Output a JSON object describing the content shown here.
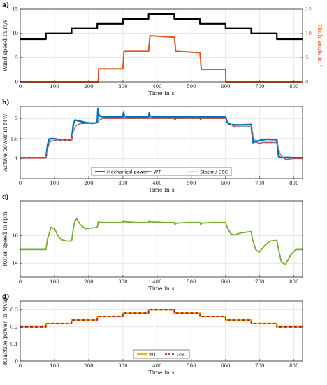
{
  "chart_data": [
    {
      "panel_label": "a)",
      "type": "line",
      "xlabel": "Time in s",
      "ylabel": "Wind speed in m/s",
      "ylabel_right": "Pitch angle in °",
      "xlim": [
        0,
        825
      ],
      "ylim": [
        0,
        15
      ],
      "ylim_right": [
        0,
        15
      ],
      "xticks": [
        0,
        100,
        200,
        300,
        400,
        500,
        600,
        700,
        800
      ],
      "yticks": [
        0,
        5,
        10,
        15
      ],
      "yticks_right": [
        0,
        5,
        10,
        15
      ],
      "grid": true,
      "series": [
        {
          "name": "",
          "axis": "left",
          "color": "#000000",
          "dash": "",
          "width": 2.2,
          "x": [
            0,
            75,
            75,
            150,
            150,
            225,
            225,
            300,
            300,
            375,
            375,
            450,
            450,
            525,
            525,
            600,
            600,
            675,
            675,
            750,
            750,
            825
          ],
          "y": [
            8.8,
            8.8,
            10,
            10,
            11,
            11,
            12,
            12,
            13,
            13,
            14,
            14,
            13,
            13,
            12,
            12,
            11,
            11,
            10,
            10,
            8.8,
            8.8
          ]
        },
        {
          "name": "",
          "axis": "right",
          "color": "#E0561C",
          "dash": "",
          "width": 2,
          "x": [
            0,
            228,
            229,
            300,
            301,
            303,
            304,
            375,
            377,
            379,
            381,
            450,
            452,
            454,
            455,
            525,
            527,
            529,
            530,
            600,
            601,
            825
          ],
          "y": [
            0,
            0,
            2.7,
            2.7,
            4,
            6.2,
            6.3,
            6.3,
            8,
            9.5,
            9.5,
            9.2,
            8.2,
            6.3,
            6.3,
            6.0,
            4.5,
            2.6,
            2.6,
            2.6,
            0,
            0
          ]
        }
      ]
    },
    {
      "panel_label": "b)",
      "type": "line",
      "xlabel": "Time in s",
      "ylabel": "Active power in MW",
      "xlim": [
        0,
        825
      ],
      "ylim": [
        0.5,
        2.3
      ],
      "xticks": [
        0,
        100,
        200,
        300,
        400,
        500,
        600,
        700,
        800
      ],
      "yticks": [
        1,
        1.5,
        2
      ],
      "grid": true,
      "legend": "bottom-center",
      "series": [
        {
          "name": "Mechanical power",
          "color": "#0072BD",
          "dash": "",
          "width": 2.4,
          "x": [
            0,
            75,
            80,
            85,
            95,
            110,
            130,
            150,
            155,
            160,
            170,
            190,
            210,
            225,
            227,
            229,
            235,
            250,
            300,
            302,
            304,
            310,
            375,
            377,
            379,
            385,
            450,
            452,
            455,
            525,
            527,
            530,
            600,
            605,
            612,
            630,
            650,
            675,
            680,
            690,
            705,
            720,
            750,
            755,
            765,
            780,
            800,
            825
          ],
          "y": [
            1.02,
            1.02,
            1.35,
            1.49,
            1.5,
            1.48,
            1.46,
            1.47,
            1.85,
            1.96,
            1.94,
            1.9,
            1.88,
            1.9,
            2.25,
            2.1,
            2.05,
            2.04,
            2.04,
            2.15,
            2.06,
            2.04,
            2.04,
            2.14,
            2.06,
            2.04,
            2.04,
            1.97,
            2.04,
            2.04,
            1.98,
            2.04,
            2.04,
            1.9,
            1.85,
            1.84,
            1.84,
            1.85,
            1.4,
            1.43,
            1.46,
            1.48,
            1.47,
            1.05,
            1.02,
            1.03,
            1.02,
            1.02
          ]
        },
        {
          "name": "WT",
          "color": "#D62728",
          "dash": "",
          "width": 1.4,
          "x": [
            0,
            75,
            82,
            90,
            100,
            120,
            150,
            155,
            163,
            175,
            195,
            225,
            230,
            240,
            300,
            305,
            375,
            380,
            450,
            455,
            525,
            530,
            600,
            610,
            625,
            645,
            675,
            683,
            695,
            710,
            750,
            760,
            775,
            800,
            825
          ],
          "y": [
            1.01,
            1.01,
            1.32,
            1.44,
            1.45,
            1.45,
            1.45,
            1.68,
            1.82,
            1.87,
            1.88,
            1.89,
            1.95,
            2.0,
            2.0,
            2.0,
            2.0,
            2.0,
            2.0,
            2.0,
            2.0,
            2.0,
            2.0,
            1.88,
            1.8,
            1.79,
            1.8,
            1.48,
            1.38,
            1.4,
            1.4,
            1.1,
            0.98,
            1.0,
            1.0
          ]
        },
        {
          "name": "Stator / GSC",
          "color": "#4FD0E0",
          "dash": "4,3",
          "width": 1.2,
          "x": [
            0,
            75,
            82,
            90,
            100,
            120,
            150,
            155,
            163,
            175,
            195,
            225,
            230,
            240,
            300,
            305,
            375,
            380,
            450,
            455,
            525,
            530,
            600,
            610,
            625,
            645,
            675,
            683,
            695,
            710,
            750,
            760,
            775,
            800,
            825
          ],
          "y": [
            1.02,
            1.02,
            1.33,
            1.45,
            1.46,
            1.46,
            1.46,
            1.69,
            1.83,
            1.88,
            1.89,
            1.9,
            1.96,
            2.01,
            2.01,
            2.01,
            2.01,
            2.01,
            2.01,
            2.01,
            2.01,
            2.01,
            2.01,
            1.89,
            1.81,
            1.8,
            1.81,
            1.49,
            1.39,
            1.41,
            1.41,
            1.11,
            0.99,
            1.01,
            1.01
          ]
        }
      ]
    },
    {
      "panel_label": "c)",
      "type": "line",
      "xlabel": "Time in s",
      "ylabel": "Rotor speed in rpm",
      "xlim": [
        0,
        825
      ],
      "ylim": [
        13,
        18.5
      ],
      "xticks": [
        0,
        100,
        200,
        300,
        400,
        500,
        600,
        700,
        800
      ],
      "yticks": [
        14,
        16
      ],
      "grid": true,
      "series": [
        {
          "name": "",
          "color": "#77AC30",
          "dash": "",
          "width": 1.8,
          "x": [
            0,
            75,
            80,
            90,
            100,
            110,
            120,
            135,
            150,
            155,
            160,
            165,
            175,
            190,
            210,
            225,
            228,
            232,
            260,
            300,
            302,
            306,
            340,
            375,
            377,
            381,
            420,
            450,
            452,
            456,
            490,
            525,
            527,
            531,
            560,
            600,
            605,
            615,
            625,
            645,
            675,
            678,
            688,
            698,
            715,
            730,
            750,
            755,
            763,
            775,
            790,
            805,
            825
          ],
          "y": [
            15,
            15,
            15.8,
            16.6,
            16.5,
            16,
            15.7,
            15.6,
            15.6,
            16.5,
            17.1,
            17.2,
            16.8,
            16.5,
            16.55,
            16.6,
            17.0,
            16.95,
            16.95,
            16.95,
            17.1,
            17.0,
            16.95,
            16.95,
            17.1,
            17.0,
            16.95,
            16.95,
            16.8,
            16.9,
            16.95,
            16.95,
            16.8,
            16.9,
            16.95,
            16.95,
            16.6,
            16.15,
            16.05,
            16.2,
            16.3,
            15.8,
            15.0,
            14.8,
            15.3,
            15.6,
            15.65,
            15.0,
            14.1,
            13.9,
            14.6,
            15.0,
            15.0
          ]
        }
      ]
    },
    {
      "panel_label": "d)",
      "type": "line",
      "xlabel": "Time in s",
      "ylabel": "Reactive power in Mvar",
      "xlim": [
        0,
        825
      ],
      "ylim": [
        0,
        0.35
      ],
      "xticks": [
        0,
        100,
        200,
        300,
        400,
        500,
        600,
        700,
        800
      ],
      "yticks": [
        0,
        0.1,
        0.2,
        0.3
      ],
      "grid": true,
      "legend": "bottom-center",
      "series": [
        {
          "name": "WT",
          "color": "#EDB120",
          "dash": "",
          "width": 2.4,
          "x": [
            0,
            75,
            75,
            150,
            150,
            225,
            225,
            300,
            300,
            375,
            375,
            450,
            450,
            525,
            525,
            600,
            600,
            675,
            675,
            750,
            750,
            825
          ],
          "y": [
            0.2,
            0.2,
            0.22,
            0.22,
            0.24,
            0.24,
            0.26,
            0.26,
            0.28,
            0.28,
            0.3,
            0.3,
            0.28,
            0.28,
            0.26,
            0.26,
            0.24,
            0.24,
            0.22,
            0.22,
            0.2,
            0.2
          ]
        },
        {
          "name": "GSC",
          "color": "#A2142F",
          "dash": "4,3",
          "width": 1.6,
          "x": [
            0,
            75,
            75,
            150,
            150,
            225,
            225,
            300,
            300,
            375,
            375,
            450,
            450,
            525,
            525,
            600,
            600,
            675,
            675,
            750,
            750,
            825
          ],
          "y": [
            0.2,
            0.2,
            0.22,
            0.22,
            0.24,
            0.24,
            0.26,
            0.26,
            0.28,
            0.28,
            0.3,
            0.3,
            0.28,
            0.28,
            0.26,
            0.26,
            0.24,
            0.24,
            0.22,
            0.22,
            0.2,
            0.2
          ]
        }
      ]
    }
  ]
}
